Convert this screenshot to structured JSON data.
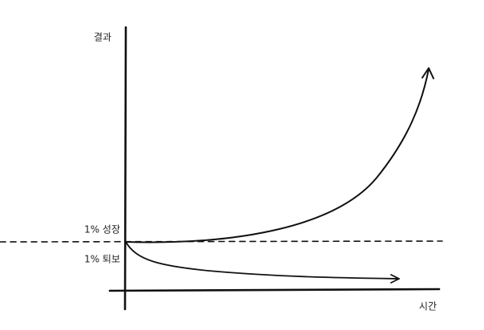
{
  "y_axis_label": "결과",
  "x_axis_label": "시간",
  "curves": [
    {
      "label": "1% 성장"
    },
    {
      "label": "1% 퇴보"
    }
  ]
}
